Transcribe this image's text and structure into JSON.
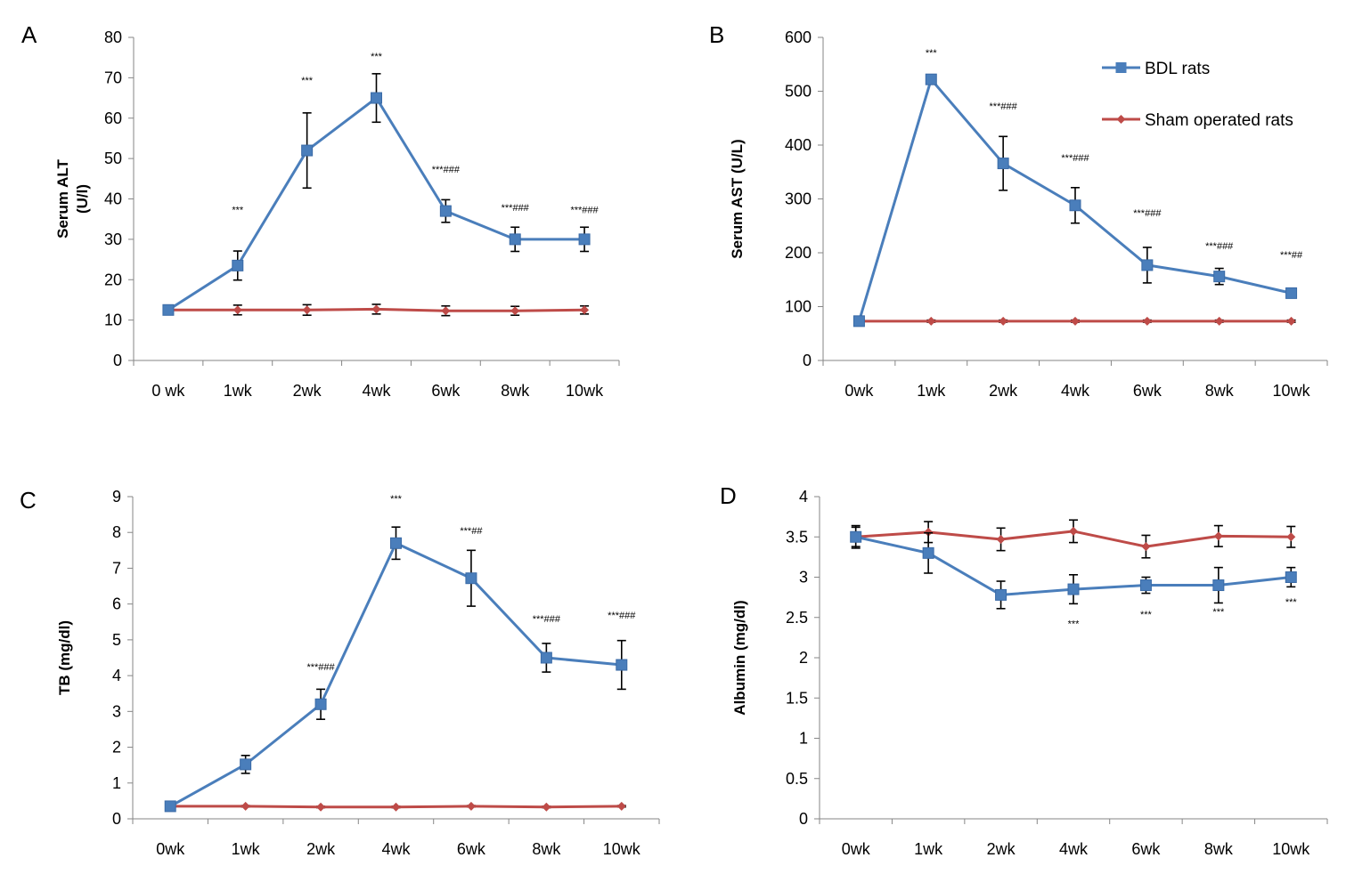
{
  "colors": {
    "bdl": "#4a7ebb",
    "sham": "#be4b48",
    "axis": "#868686"
  },
  "legend": [
    {
      "name": "BDL rats",
      "color": "#4a7ebb",
      "marker": "square"
    },
    {
      "name": "Sham operated rats",
      "color": "#be4b48",
      "marker": "diamond"
    }
  ],
  "chart_data": [
    {
      "panel": "A",
      "type": "line",
      "ylabel": "Serum ALT\n(U/l)",
      "ylim": [
        0,
        80
      ],
      "yticks": [
        0,
        10,
        20,
        30,
        40,
        50,
        60,
        70,
        80
      ],
      "categories": [
        "0 wk",
        "1wk",
        "2wk",
        "4wk",
        "6wk",
        "8wk",
        "10wk"
      ],
      "series": [
        {
          "name": "BDL rats",
          "values": [
            12.5,
            23.5,
            52,
            65,
            37,
            30,
            30
          ],
          "errors": [
            0.6,
            3.6,
            9.3,
            6,
            2.8,
            3,
            3
          ]
        },
        {
          "name": "Sham operated rats",
          "values": [
            12.5,
            12.5,
            12.5,
            12.7,
            12.3,
            12.3,
            12.5
          ],
          "errors": [
            1,
            1.2,
            1.3,
            1.2,
            1.2,
            1.1,
            1
          ]
        }
      ],
      "annotations": [
        {
          "index": 1,
          "y": 36.5,
          "text": "***"
        },
        {
          "index": 2,
          "y": 68.5,
          "text": "***"
        },
        {
          "index": 3,
          "y": 74.5,
          "text": "***"
        },
        {
          "index": 4,
          "y": 46.5,
          "text": "***###"
        },
        {
          "index": 5,
          "y": 37,
          "text": "***###"
        },
        {
          "index": 6,
          "y": 36.5,
          "text": "***###"
        }
      ]
    },
    {
      "panel": "B",
      "type": "line",
      "ylabel": "Serum AST (U/L)",
      "ylim": [
        0,
        600
      ],
      "yticks": [
        0,
        100,
        200,
        300,
        400,
        500,
        600
      ],
      "categories": [
        "0wk",
        "1wk",
        "2wk",
        "4wk",
        "6wk",
        "8wk",
        "10wk"
      ],
      "series": [
        {
          "name": "BDL rats",
          "values": [
            73,
            522,
            366,
            288,
            177,
            156,
            125
          ],
          "errors": [
            3,
            4,
            50,
            33,
            33,
            15,
            6
          ]
        },
        {
          "name": "Sham operated rats",
          "values": [
            73,
            73,
            73,
            73,
            73,
            73,
            73
          ],
          "errors": [
            2,
            2,
            2,
            2,
            2,
            2,
            2
          ]
        }
      ],
      "annotations": [
        {
          "index": 1,
          "y": 565,
          "text": "***"
        },
        {
          "index": 2,
          "y": 466,
          "text": "***###"
        },
        {
          "index": 3,
          "y": 370,
          "text": "***###"
        },
        {
          "index": 4,
          "y": 268,
          "text": "***###"
        },
        {
          "index": 5,
          "y": 207,
          "text": "***###"
        },
        {
          "index": 6,
          "y": 190,
          "text": "***##"
        }
      ]
    },
    {
      "panel": "C",
      "type": "line",
      "ylabel": "TB (mg/dl)",
      "ylim": [
        0,
        9
      ],
      "yticks": [
        0,
        1,
        2,
        3,
        4,
        5,
        6,
        7,
        8,
        9
      ],
      "categories": [
        "0wk",
        "1wk",
        "2wk",
        "4wk",
        "6wk",
        "8wk",
        "10wk"
      ],
      "series": [
        {
          "name": "BDL rats",
          "values": [
            0.35,
            1.52,
            3.2,
            7.7,
            6.72,
            4.5,
            4.3
          ],
          "errors": [
            0.05,
            0.25,
            0.42,
            0.45,
            0.78,
            0.4,
            0.68
          ]
        },
        {
          "name": "Sham operated rats",
          "values": [
            0.35,
            0.35,
            0.33,
            0.33,
            0.35,
            0.33,
            0.35
          ],
          "errors": [
            0.02,
            0.02,
            0.02,
            0.02,
            0.02,
            0.02,
            0.02
          ]
        }
      ],
      "annotations": [
        {
          "index": 2,
          "y": 4.15,
          "text": "***###"
        },
        {
          "index": 3,
          "y": 8.85,
          "text": "***"
        },
        {
          "index": 4,
          "y": 7.95,
          "text": "***##"
        },
        {
          "index": 5,
          "y": 5.5,
          "text": "***###"
        },
        {
          "index": 6,
          "y": 5.6,
          "text": "***###"
        }
      ]
    },
    {
      "panel": "D",
      "type": "line",
      "ylabel": "Albumin  (mg/dl)",
      "ylim": [
        0,
        4
      ],
      "yticks": [
        "0",
        "0.5",
        "1",
        "1.5",
        "2",
        "2.5",
        "3",
        "3.5",
        "4"
      ],
      "categories": [
        "0wk",
        "1wk",
        "2wk",
        "4wk",
        "6wk",
        "8wk",
        "10wk"
      ],
      "series": [
        {
          "name": "BDL rats",
          "values": [
            3.5,
            3.3,
            2.78,
            2.85,
            2.9,
            2.9,
            3.0
          ],
          "errors": [
            0.12,
            0.25,
            0.17,
            0.18,
            0.1,
            0.22,
            0.12
          ]
        },
        {
          "name": "Sham operated rats",
          "values": [
            3.5,
            3.56,
            3.47,
            3.57,
            3.38,
            3.51,
            3.5
          ],
          "errors": [
            0.14,
            0.13,
            0.14,
            0.14,
            0.14,
            0.13,
            0.13
          ]
        }
      ],
      "annotations": [
        {
          "index": 3,
          "y": 2.38,
          "text": "***"
        },
        {
          "index": 4,
          "y": 2.5,
          "text": "***"
        },
        {
          "index": 5,
          "y": 2.53,
          "text": "***"
        },
        {
          "index": 6,
          "y": 2.65,
          "text": "***"
        }
      ]
    }
  ]
}
